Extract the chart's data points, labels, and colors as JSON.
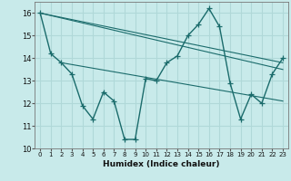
{
  "xlabel": "Humidex (Indice chaleur)",
  "ylabel": "",
  "background_color": "#c8eaea",
  "grid_color": "#b0d8d8",
  "line_color": "#1a6b6b",
  "xlim": [
    -0.5,
    23.5
  ],
  "ylim": [
    10,
    16.5
  ],
  "yticks": [
    10,
    11,
    12,
    13,
    14,
    15,
    16
  ],
  "xticks": [
    0,
    1,
    2,
    3,
    4,
    5,
    6,
    7,
    8,
    9,
    10,
    11,
    12,
    13,
    14,
    15,
    16,
    17,
    18,
    19,
    20,
    21,
    22,
    23
  ],
  "series": [
    {
      "x": [
        0,
        1,
        2,
        3,
        4,
        5,
        6,
        7,
        8,
        9,
        10,
        11,
        12,
        13,
        14,
        15,
        16,
        17,
        18,
        19,
        20,
        21,
        22,
        23
      ],
      "y": [
        16.0,
        14.2,
        13.8,
        13.3,
        11.9,
        11.3,
        12.5,
        12.1,
        10.4,
        10.4,
        13.1,
        13.0,
        13.8,
        14.1,
        15.0,
        15.5,
        16.2,
        15.4,
        12.9,
        11.3,
        12.4,
        12.0,
        13.3,
        14.0
      ]
    },
    {
      "x": [
        0,
        23
      ],
      "y": [
        16.0,
        13.8
      ]
    },
    {
      "x": [
        0,
        23
      ],
      "y": [
        16.0,
        13.5
      ]
    },
    {
      "x": [
        2,
        23
      ],
      "y": [
        13.8,
        12.1
      ]
    }
  ]
}
